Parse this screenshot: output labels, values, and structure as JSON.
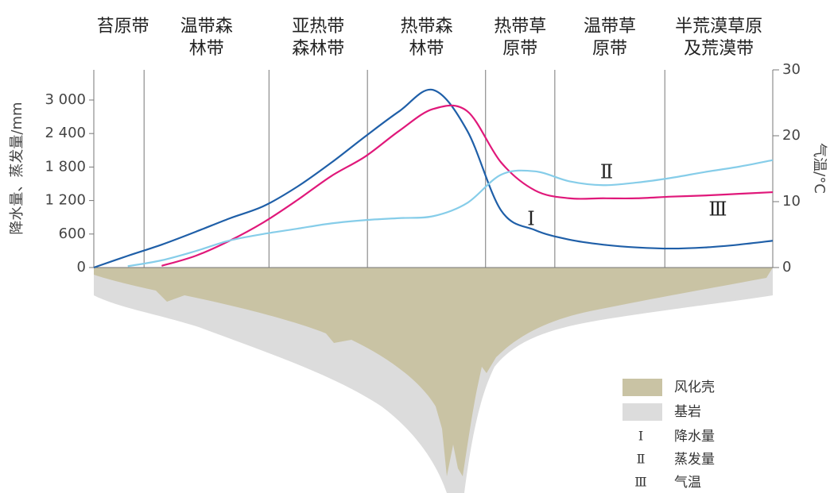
{
  "chart_data": {
    "type": "line",
    "y_label": "降水量、蒸发量/mm",
    "y2_label": "气温/°C",
    "zones": [
      {
        "label": [
          "苔原带"
        ],
        "end": 7.4
      },
      {
        "label": [
          "温带森",
          "林带"
        ],
        "end": 25.8
      },
      {
        "label": [
          "亚热带",
          "森林带"
        ],
        "end": 40.3
      },
      {
        "label": [
          "热带森",
          "林带"
        ],
        "end": 57.7
      },
      {
        "label": [
          "热带草",
          "原带"
        ],
        "end": 67.9
      },
      {
        "label": [
          "温带草",
          "原带"
        ],
        "end": 84.1
      },
      {
        "label": [
          "半荒漠草原",
          "及荒漠带"
        ],
        "end": 100
      }
    ],
    "x": [
      0,
      5,
      10,
      15,
      20,
      25,
      30,
      35,
      40,
      45,
      50,
      55,
      60,
      65,
      70,
      75,
      80,
      85,
      90,
      95,
      100
    ],
    "xlim": [
      0,
      100
    ],
    "ylim": [
      0,
      3540
    ],
    "yticks": [
      0,
      600,
      {
        "value": 1200,
        "label": "1 200"
      },
      {
        "value": 1800,
        "label": "1 800"
      },
      {
        "value": 2400,
        "label": "2 400"
      },
      {
        "value": 3000,
        "label": "3 000"
      }
    ],
    "y2lim": [
      0,
      30
    ],
    "y2ticks": [
      0,
      10,
      20,
      30
    ],
    "series": [
      {
        "name": "降水量",
        "symbol": "Ⅰ",
        "color": "#1f5fa8",
        "values": [
          0,
          210,
          410,
          640,
          880,
          1100,
          1450,
          1880,
          2350,
          2800,
          3180,
          2450,
          1020,
          670,
          500,
          410,
          360,
          340,
          360,
          410,
          480
        ]
      },
      {
        "name": "蒸发量",
        "symbol": "Ⅱ",
        "color": "#e0187a",
        "values": [
          null,
          null,
          30,
          210,
          480,
          810,
          1210,
          1640,
          1990,
          2450,
          2840,
          2800,
          1880,
          1380,
          1240,
          1240,
          1240,
          1270,
          1290,
          1320,
          1350
        ]
      },
      {
        "name": "气温",
        "symbol": "Ⅲ",
        "color": "#86cde9",
        "axis": "y2",
        "values": [
          null,
          0.2,
          1.1,
          2.5,
          4.1,
          5.1,
          5.9,
          6.7,
          7.2,
          7.5,
          7.8,
          9.8,
          14.1,
          14.6,
          13.1,
          12.5,
          12.9,
          13.6,
          14.5,
          15.3,
          16.3
        ]
      }
    ],
    "legend_areas": [
      {
        "label": "风化壳",
        "color": "#c9c3a4"
      },
      {
        "label": "基岩",
        "color": "#dcdcdc"
      }
    ]
  }
}
